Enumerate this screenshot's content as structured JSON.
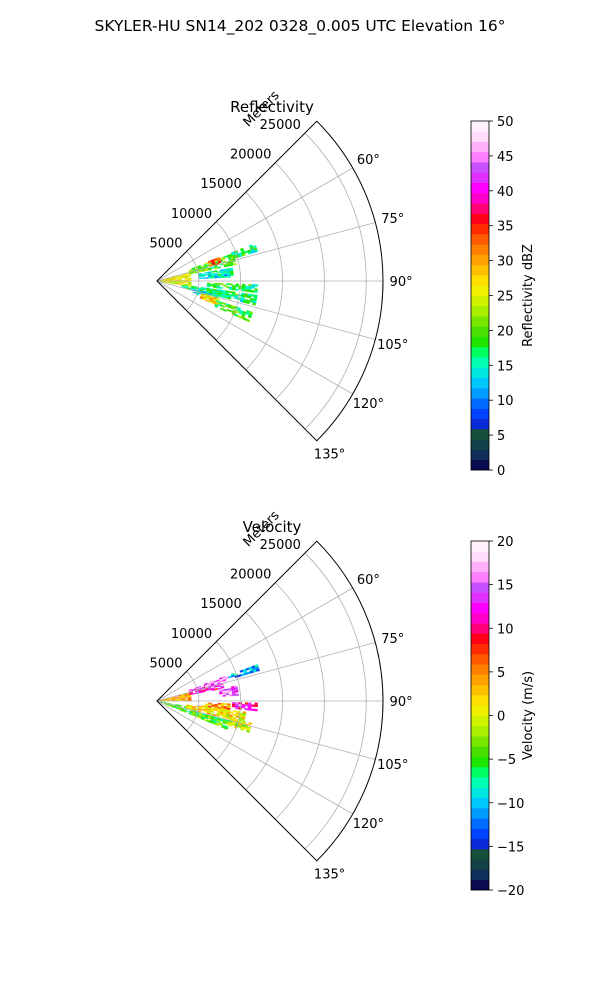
{
  "figure": {
    "suptitle": "SKYLER-HU  SN14_202  0328_0.005 UTC Elevation 16°"
  },
  "chart_data": [
    {
      "type": "polar-sector",
      "title": "Reflectivity",
      "radial_label": "Meters",
      "radial_ticks": [
        5000,
        10000,
        15000,
        20000,
        25000
      ],
      "radial_tick_labels": [
        "5000",
        "10000",
        "15000",
        "20000",
        "25000"
      ],
      "rlim": [
        0,
        27000
      ],
      "theta_range_deg": [
        45,
        135
      ],
      "theta_ticks_deg": [
        60,
        75,
        90,
        105,
        120,
        135
      ],
      "theta_tick_labels": [
        "60°",
        "75°",
        "90°",
        "105°",
        "120°",
        "135°"
      ],
      "grid": true,
      "colorbar": {
        "label": "Reflectivity dBZ",
        "range": [
          0,
          50
        ],
        "ticks": [
          0,
          5,
          10,
          15,
          20,
          25,
          30,
          35,
          40,
          45,
          50
        ],
        "tick_labels": [
          "0",
          "5",
          "10",
          "15",
          "20",
          "25",
          "30",
          "35",
          "40",
          "45",
          "50"
        ],
        "colors": [
          "#0a0a50",
          "#0f2f5a",
          "#12414a",
          "#16503a",
          "#0a2bd8",
          "#0044ff",
          "#006cff",
          "#009cff",
          "#00c8ff",
          "#00e6e0",
          "#00ffb0",
          "#00ff60",
          "#1ee600",
          "#48e000",
          "#78e800",
          "#a8f000",
          "#d0f400",
          "#f0f000",
          "#ffe000",
          "#ffc000",
          "#ffa000",
          "#ff8000",
          "#ff5a00",
          "#ff2a00",
          "#ff0018",
          "#ff0078",
          "#ff00c8",
          "#ff00ff",
          "#e030ff",
          "#c850ff",
          "#ff80ff",
          "#ffb0f8",
          "#ffdcfa",
          "#fff0fc"
        ]
      },
      "data_regions": [
        {
          "r": [
            300,
            4000
          ],
          "theta": [
            75,
            90
          ],
          "value": 26
        },
        {
          "r": [
            300,
            4000
          ],
          "theta": [
            91,
            99
          ],
          "value": 25
        },
        {
          "r": [
            4000,
            9500
          ],
          "theta": [
            70,
            78
          ],
          "value": 20
        },
        {
          "r": [
            6500,
            8000
          ],
          "theta": [
            69,
            74
          ],
          "value": 33
        },
        {
          "r": [
            9500,
            12500
          ],
          "theta": [
            69,
            73
          ],
          "value": 17
        },
        {
          "r": [
            5000,
            9000
          ],
          "theta": [
            80,
            87
          ],
          "value": 14
        },
        {
          "r": [
            6000,
            12000
          ],
          "theta": [
            92,
            96
          ],
          "value": 18
        },
        {
          "r": [
            3000,
            12000
          ],
          "theta": [
            98,
            104
          ],
          "value": 17
        },
        {
          "r": [
            4500,
            7500
          ],
          "theta": [
            103,
            108
          ],
          "value": 14
        },
        {
          "r": [
            5500,
            7500
          ],
          "theta": [
            106,
            111
          ],
          "value": 28
        },
        {
          "r": [
            7500,
            12000
          ],
          "theta": [
            108,
            113
          ],
          "value": 19
        }
      ]
    },
    {
      "type": "polar-sector",
      "title": "Velocity",
      "radial_label": "Meters",
      "radial_ticks": [
        5000,
        10000,
        15000,
        20000,
        25000
      ],
      "radial_tick_labels": [
        "5000",
        "10000",
        "15000",
        "20000",
        "25000"
      ],
      "rlim": [
        0,
        27000
      ],
      "theta_range_deg": [
        45,
        135
      ],
      "theta_ticks_deg": [
        60,
        75,
        90,
        105,
        120,
        135
      ],
      "theta_tick_labels": [
        "60°",
        "75°",
        "90°",
        "105°",
        "120°",
        "135°"
      ],
      "grid": true,
      "colorbar": {
        "label": "Velocity (m/s)",
        "range": [
          -20,
          20
        ],
        "ticks": [
          -20,
          -15,
          -10,
          -5,
          0,
          5,
          10,
          15,
          20
        ],
        "tick_labels": [
          "−20",
          "−15",
          "−10",
          "−5",
          "0",
          "5",
          "10",
          "15",
          "20"
        ],
        "colors": [
          "#0a0a50",
          "#0f2f5a",
          "#12414a",
          "#16503a",
          "#0a2bd8",
          "#0044ff",
          "#006cff",
          "#009cff",
          "#00c8ff",
          "#00e6e0",
          "#00ffb0",
          "#00ff60",
          "#1ee600",
          "#48e000",
          "#78e800",
          "#a8f000",
          "#d0f400",
          "#f0f000",
          "#ffe000",
          "#ffc000",
          "#ffa000",
          "#ff8000",
          "#ff5a00",
          "#ff2a00",
          "#ff0018",
          "#ff0078",
          "#ff00c8",
          "#ff00ff",
          "#e030ff",
          "#c850ff",
          "#ff80ff",
          "#ffb0f8",
          "#ffdcfa",
          "#fff0fc"
        ]
      },
      "data_regions": [
        {
          "r": [
            300,
            4000
          ],
          "theta": [
            76,
            90
          ],
          "value": 3
        },
        {
          "r": [
            300,
            4500
          ],
          "theta": [
            100,
            112
          ],
          "value": -5
        },
        {
          "r": [
            4000,
            8000
          ],
          "theta": [
            71,
            79
          ],
          "value": 12
        },
        {
          "r": [
            6000,
            9000
          ],
          "theta": [
            70,
            74
          ],
          "value": 16
        },
        {
          "r": [
            9000,
            12500
          ],
          "theta": [
            70,
            73
          ],
          "value": -11
        },
        {
          "r": [
            7500,
            9500
          ],
          "theta": [
            79,
            86
          ],
          "value": 15
        },
        {
          "r": [
            5000,
            8500
          ],
          "theta": [
            92,
            97
          ],
          "value": 5
        },
        {
          "r": [
            9000,
            12000
          ],
          "theta": [
            91,
            95
          ],
          "value": 12
        },
        {
          "r": [
            3500,
            10500
          ],
          "theta": [
            97,
            104
          ],
          "value": 1
        },
        {
          "r": [
            4500,
            9000
          ],
          "theta": [
            105,
            112
          ],
          "value": -4
        },
        {
          "r": [
            9000,
            11500
          ],
          "theta": [
            103,
            108
          ],
          "value": 0
        }
      ]
    }
  ]
}
